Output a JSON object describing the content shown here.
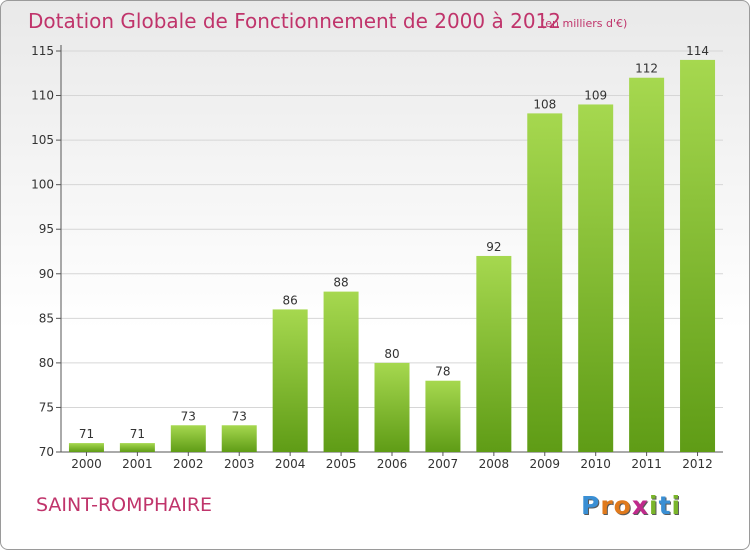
{
  "title": "Dotation Globale de Fonctionnement de 2000 à 2012",
  "subtitle": "(en milliers d'€)",
  "commune": "SAINT-ROMPHAIRE",
  "logo": {
    "letters": [
      "P",
      "r",
      "o",
      "x",
      "i",
      "t",
      "i"
    ],
    "colors": [
      "#3a8fd4",
      "#e07a1d",
      "#e07a1d",
      "#c02a8c",
      "#7ab52a",
      "#3a8fd4",
      "#7ab52a"
    ]
  },
  "colors": {
    "title": "#c0346b",
    "bar_light": "#a6d84f",
    "bar_dark": "#5f9c16",
    "grid": "#d6d6d6"
  },
  "chart_data": {
    "type": "bar",
    "title": "Dotation Globale de Fonctionnement de 2000 à 2012",
    "subtitle": "(en milliers d'€)",
    "categories": [
      "2000",
      "2001",
      "2002",
      "2003",
      "2004",
      "2005",
      "2006",
      "2007",
      "2008",
      "2009",
      "2010",
      "2011",
      "2012"
    ],
    "values": [
      71,
      71,
      73,
      73,
      86,
      88,
      80,
      78,
      92,
      108,
      109,
      112,
      114
    ],
    "ylim": [
      70,
      115
    ],
    "yticks": [
      70,
      75,
      80,
      85,
      90,
      95,
      100,
      105,
      110,
      115
    ],
    "grid": true,
    "data_labels": true
  }
}
